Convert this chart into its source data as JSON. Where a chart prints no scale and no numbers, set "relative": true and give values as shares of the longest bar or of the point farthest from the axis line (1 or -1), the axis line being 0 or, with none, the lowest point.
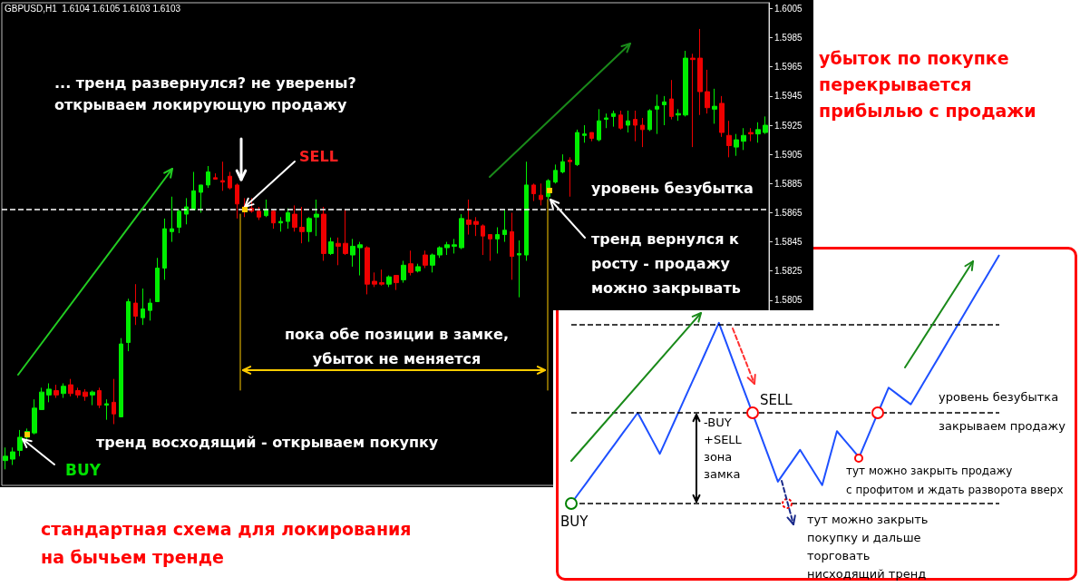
{
  "chart_data": [
    {
      "type": "candlestick",
      "categories": [
        null,
        null,
        null,
        null,
        null,
        null,
        null,
        null,
        null,
        null,
        null,
        null,
        null,
        null,
        null,
        null,
        null,
        null,
        null,
        null,
        null,
        null,
        null,
        null,
        null,
        null,
        null,
        null,
        null,
        null,
        null,
        null,
        null,
        null,
        null,
        null,
        null,
        null,
        null,
        null,
        null,
        null,
        null,
        null,
        null,
        null,
        null,
        null,
        null,
        null,
        null,
        null,
        null,
        null,
        null,
        null,
        null,
        null,
        null,
        null,
        null,
        null,
        null,
        null,
        null,
        null,
        null,
        null,
        null,
        null,
        null,
        null,
        null,
        null,
        null,
        null,
        null,
        null,
        null,
        null,
        null,
        null,
        null,
        null,
        null,
        null,
        null,
        null,
        null,
        null,
        null,
        null,
        null,
        null,
        null,
        null,
        null,
        null,
        null,
        null,
        null,
        null,
        null,
        null,
        null,
        null
      ],
      "ohlc": [
        [
          1.5695,
          1.5704,
          1.5689,
          1.5698
        ],
        [
          1.5696,
          1.5704,
          1.5692,
          1.5701
        ],
        [
          1.5702,
          1.5716,
          1.5698,
          1.5711
        ],
        [
          1.5711,
          1.5717,
          1.5709,
          1.5715
        ],
        [
          1.5714,
          1.5737,
          1.5713,
          1.5731
        ],
        [
          1.573,
          1.5745,
          1.573,
          1.5742
        ],
        [
          1.574,
          1.5748,
          1.5735,
          1.5744
        ],
        [
          1.5743,
          1.5747,
          1.5738,
          1.574
        ],
        [
          1.5741,
          1.5748,
          1.5738,
          1.5746
        ],
        [
          1.5747,
          1.5751,
          1.5739,
          1.5741
        ],
        [
          1.5743,
          1.5745,
          1.5738,
          1.574
        ],
        [
          1.5742,
          1.5744,
          1.5736,
          1.5739
        ],
        [
          1.574,
          1.5743,
          1.5733,
          1.5742
        ],
        [
          1.5743,
          1.5745,
          1.5731,
          1.5733
        ],
        [
          1.5733,
          1.5737,
          1.5723,
          1.5734
        ],
        [
          1.5735,
          1.5751,
          1.572,
          1.5727
        ],
        [
          1.5725,
          1.5779,
          1.5725,
          1.5775
        ],
        [
          1.5776,
          1.5806,
          1.577,
          1.5804
        ],
        [
          1.5803,
          1.5816,
          1.5788,
          1.5794
        ],
        [
          1.5793,
          1.5813,
          1.5788,
          1.5799
        ],
        [
          1.5798,
          1.5806,
          1.5791,
          1.5803
        ],
        [
          1.5804,
          1.5834,
          1.5804,
          1.5827
        ],
        [
          1.5827,
          1.5861,
          1.5819,
          1.5854
        ],
        [
          1.5852,
          1.5876,
          1.5845,
          1.5854
        ],
        [
          1.5855,
          1.5867,
          1.5851,
          1.5866
        ],
        [
          1.5864,
          1.5875,
          1.5857,
          1.5869
        ],
        [
          1.5867,
          1.5893,
          1.5867,
          1.588
        ],
        [
          1.5879,
          1.5884,
          1.5865,
          1.5884
        ],
        [
          1.5884,
          1.5897,
          1.5882,
          1.5893
        ],
        [
          1.5889,
          1.5892,
          1.5888,
          1.5888
        ],
        [
          1.5887,
          1.59,
          1.588,
          1.5886
        ],
        [
          1.589,
          1.5893,
          1.5881,
          1.5882
        ],
        [
          1.5884,
          1.5885,
          1.5861,
          1.5871
        ],
        [
          1.5869,
          1.5875,
          1.5862,
          1.5866
        ],
        [
          1.5868,
          1.5875,
          1.5865,
          1.5866
        ],
        [
          1.5866,
          1.5869,
          1.586,
          1.5862
        ],
        [
          1.5863,
          1.5874,
          1.5862,
          1.5867
        ],
        [
          1.5866,
          1.5867,
          1.5854,
          1.5858
        ],
        [
          1.5858,
          1.5862,
          1.5852,
          1.5859
        ],
        [
          1.5859,
          1.5868,
          1.5854,
          1.5865
        ],
        [
          1.5864,
          1.587,
          1.5852,
          1.5855
        ],
        [
          1.5855,
          1.5869,
          1.5844,
          1.5852
        ],
        [
          1.5852,
          1.5862,
          1.5845,
          1.5861
        ],
        [
          1.5862,
          1.5874,
          1.5849,
          1.5864
        ],
        [
          1.5864,
          1.5869,
          1.5832,
          1.5837
        ],
        [
          1.5837,
          1.5848,
          1.5836,
          1.5845
        ],
        [
          1.5844,
          1.5848,
          1.5829,
          1.5842
        ],
        [
          1.5844,
          1.5867,
          1.5836,
          1.5837
        ],
        [
          1.5836,
          1.5847,
          1.5828,
          1.5842
        ],
        [
          1.5841,
          1.5845,
          1.5822,
          1.5843
        ],
        [
          1.5841,
          1.5842,
          1.5809,
          1.5816
        ],
        [
          1.5818,
          1.5824,
          1.5814,
          1.5816
        ],
        [
          1.5817,
          1.5826,
          1.5815,
          1.5816
        ],
        [
          1.5816,
          1.5822,
          1.5814,
          1.5821
        ],
        [
          1.5822,
          1.5822,
          1.5812,
          1.5817
        ],
        [
          1.5819,
          1.5832,
          1.5817,
          1.5829
        ],
        [
          1.583,
          1.5839,
          1.5822,
          1.5824
        ],
        [
          1.5825,
          1.583,
          1.5824,
          1.5828
        ],
        [
          1.5836,
          1.5839,
          1.5827,
          1.5829
        ],
        [
          1.5829,
          1.5837,
          1.5824,
          1.5836
        ],
        [
          1.5836,
          1.5842,
          1.5834,
          1.5841
        ],
        [
          1.5841,
          1.5845,
          1.5836,
          1.5843
        ],
        [
          1.5842,
          1.5847,
          1.5837,
          1.5843
        ],
        [
          1.5841,
          1.5864,
          1.584,
          1.5861
        ],
        [
          1.586,
          1.5874,
          1.585,
          1.5857
        ],
        [
          1.5859,
          1.5862,
          1.5849,
          1.5857
        ],
        [
          1.5856,
          1.5857,
          1.5836,
          1.5849
        ],
        [
          1.585,
          1.585,
          1.5832,
          1.5847
        ],
        [
          1.5847,
          1.5855,
          1.5837,
          1.585
        ],
        [
          1.585,
          1.5867,
          1.5845,
          1.5853
        ],
        [
          1.5852,
          1.5865,
          1.5819,
          1.5835
        ],
        [
          1.5836,
          1.5846,
          1.5807,
          1.5837
        ],
        [
          1.5836,
          1.59,
          1.5832,
          1.5884
        ],
        [
          1.5884,
          1.5885,
          1.5873,
          1.5878
        ],
        [
          1.5877,
          1.5885,
          1.587,
          1.5874
        ],
        [
          1.5876,
          1.5888,
          1.5874,
          1.5887
        ],
        [
          1.5886,
          1.5898,
          1.5885,
          1.5894
        ],
        [
          1.5893,
          1.5905,
          1.5892,
          1.59
        ],
        [
          1.5901,
          1.5903,
          1.5876,
          1.59
        ],
        [
          1.5898,
          1.5922,
          1.5897,
          1.592
        ],
        [
          1.5918,
          1.5925,
          1.5913,
          1.5919
        ],
        [
          1.592,
          1.592,
          1.5914,
          1.5916
        ],
        [
          1.5915,
          1.5936,
          1.5914,
          1.5928
        ],
        [
          1.5929,
          1.5933,
          1.5923,
          1.593
        ],
        [
          1.5931,
          1.5935,
          1.5924,
          1.5933
        ],
        [
          1.5932,
          1.5935,
          1.5922,
          1.5923
        ],
        [
          1.5925,
          1.5935,
          1.592,
          1.5928
        ],
        [
          1.5929,
          1.5935,
          1.5914,
          1.5925
        ],
        [
          1.5925,
          1.593,
          1.591,
          1.5922
        ],
        [
          1.5922,
          1.5936,
          1.5921,
          1.5935
        ],
        [
          1.5936,
          1.5946,
          1.5919,
          1.5938
        ],
        [
          1.5939,
          1.5945,
          1.5925,
          1.5941
        ],
        [
          1.5943,
          1.5956,
          1.5929,
          1.5931
        ],
        [
          1.5932,
          1.5936,
          1.5928,
          1.5933
        ],
        [
          1.5932,
          1.5976,
          1.5931,
          1.5971
        ],
        [
          1.5971,
          1.5974,
          1.591,
          1.597
        ],
        [
          1.5971,
          1.5991,
          1.5932,
          1.5948
        ],
        [
          1.5948,
          1.5963,
          1.5933,
          1.5937
        ],
        [
          1.5936,
          1.595,
          1.5926,
          1.5938
        ],
        [
          1.594,
          1.5945,
          1.5917,
          1.592
        ],
        [
          1.5918,
          1.5928,
          1.5903,
          1.5911
        ],
        [
          1.591,
          1.5919,
          1.5904,
          1.5915
        ],
        [
          1.5914,
          1.5923,
          1.5908,
          1.5918
        ],
        [
          1.592,
          1.5923,
          1.5914,
          1.5919
        ],
        [
          1.5919,
          1.5927,
          1.5913,
          1.5922
        ],
        [
          1.592,
          1.5931,
          1.5919,
          1.5925
        ]
      ],
      "colors": [
        "#00ee00",
        "#00ee00",
        "#00ee00",
        "#00ee00",
        "#00ee00",
        "#00ee00",
        "#00ee00",
        "#ee0000",
        "#00ee00",
        "#ee0000",
        "#ee0000",
        "#ee0000",
        "#00ee00",
        "#ee0000",
        "#00ee00",
        "#ee0000",
        "#00ee00",
        "#00ee00",
        "#ee0000",
        "#00ee00",
        "#00ee00",
        "#00ee00",
        "#00ee00",
        "#00ee00",
        "#00ee00",
        "#00ee00",
        "#00ee00",
        "#00ee00",
        "#00ee00",
        "#ee0000",
        "#ee0000",
        "#ee0000",
        "#ee0000",
        "#ee0000",
        "#ee0000",
        "#ee0000",
        "#00ee00",
        "#ee0000",
        "#00ee00",
        "#00ee00",
        "#ee0000",
        "#ee0000",
        "#00ee00",
        "#00ee00",
        "#ee0000",
        "#00ee00",
        "#ee0000",
        "#ee0000",
        "#00ee00",
        "#00ee00",
        "#ee0000",
        "#ee0000",
        "#ee0000",
        "#00ee00",
        "#ee0000",
        "#00ee00",
        "#ee0000",
        "#00ee00",
        "#ee0000",
        "#00ee00",
        "#00ee00",
        "#00ee00",
        "#00ee00",
        "#00ee00",
        "#ee0000",
        "#ee0000",
        "#ee0000",
        "#ee0000",
        "#00ee00",
        "#00ee00",
        "#ee0000",
        "#00ee00",
        "#00ee00",
        "#ee0000",
        "#ee0000",
        "#00ee00",
        "#00ee00",
        "#00ee00",
        "#ee0000",
        "#00ee00",
        "#00ee00",
        "#ee0000",
        "#00ee00",
        "#00ee00",
        "#00ee00",
        "#ee0000",
        "#00ee00",
        "#ee0000",
        "#ee0000",
        "#00ee00",
        "#00ee00",
        "#00ee00",
        "#ee0000",
        "#00ee00",
        "#00ee00",
        "#ee0000",
        "#ee0000",
        "#ee0000",
        "#00ee00",
        "#ee0000",
        "#ee0000",
        "#00ee00",
        "#00ee00",
        "#ee0000",
        "#00ee00",
        "#00ee00"
      ],
      "ylim": [
        1.5678,
        1.6009
      ],
      "yticks": [
        1.6005,
        1.5985,
        1.5965,
        1.5945,
        1.5925,
        1.5905,
        1.5885,
        1.5865,
        1.5845,
        1.5825,
        1.5805
      ],
      "ref_lines": [
        {
          "axis": "y",
          "value": 1.5867,
          "label": "уровень безубытка",
          "color": "#ffffff",
          "line_style": "dashed"
        }
      ],
      "annotations": [
        "GBPUSD,H1  1.6104 1.6105 1.6103 1.6103",
        "... тренд развернулся? не уверены?\nоткрываем локирующую продажу",
        "SELL",
        "тренд вернулся к\nросту - продажу\nможно закрывать",
        "пока обе позиции в замке,\nубыток не меняется",
        "тренд восходящий - открываем покупку",
        "BUY",
        "убыток по покупке\nперекрывается\nприбылью с продажи",
        "стандартная схема для локирования\nна бычьем тренде"
      ]
    },
    {
      "type": "line",
      "relative": true,
      "marker": "none",
      "categories": [
        null,
        null,
        null,
        null,
        null,
        null,
        null,
        null,
        null,
        null,
        null,
        null,
        null,
        null,
        null,
        null,
        null,
        null,
        null,
        null,
        null,
        null,
        null,
        null,
        null,
        null,
        null,
        null,
        null,
        null,
        null,
        null,
        null,
        null,
        null,
        null,
        null,
        null,
        null,
        null,
        null,
        null,
        null,
        null,
        null,
        null,
        null,
        null,
        null,
        null,
        null,
        null,
        null,
        null,
        null,
        null,
        null,
        null,
        null
      ],
      "series": [
        {
          "color": "#1e50ff",
          "values": [
            0,
            0.041,
            0.081,
            0.122,
            0.162,
            0.203,
            0.243,
            0.284,
            0.324,
            0.365,
            0.31,
            0.255,
            0.2,
            0.266,
            0.332,
            0.398,
            0.464,
            0.529,
            0.595,
            0.661,
            0.727,
            0.647,
            0.567,
            0.487,
            0.408,
            0.328,
            0.248,
            0.168,
            0.088,
            0.131,
            0.173,
            0.216,
            0.169,
            0.121,
            0.074,
            0.183,
            0.291,
            0.256,
            0.221,
            0.186,
            0.256,
            0.326,
            0.396,
            0.466,
            0.444,
            0.421,
            0.399,
            0.449,
            0.499,
            0.549,
            0.599,
            0.65,
            0.7,
            0.75,
            0.8,
            0.85,
            0.9,
            0.95,
            1
          ]
        }
      ],
      "ref_lines": [
        {
          "axis": "y",
          "value": 0.72,
          "color": "#000000",
          "line_style": "dashed"
        },
        {
          "axis": "y",
          "value": 0.365,
          "label": "уровень безубытка",
          "color": "#000000",
          "line_style": "dashed"
        },
        {
          "axis": "y",
          "value": 0,
          "color": "#000000",
          "line_style": "dashed"
        }
      ],
      "annotations": [
        "SELL",
        "BUY",
        "-BUY\n+SELL\nзона\nзамка",
        "закрываем продажу",
        "тут можно закрыть продажу\nс профитом и ждать разворота вверх",
        "тут можно закрыть\nпокупку и дальше\nторговать\nнисходящий тренд"
      ]
    }
  ]
}
